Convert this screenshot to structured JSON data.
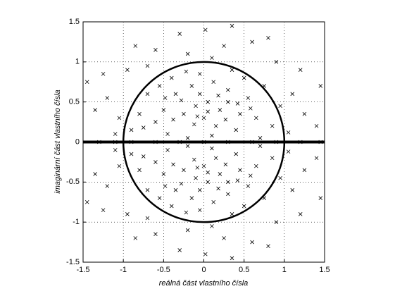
{
  "chart_data": {
    "type": "scatter",
    "x_label": "reálná část vlastního čísla",
    "y_label": "imaginární část vlastního čísla",
    "xlim": [
      -1.5,
      1.5
    ],
    "ylim": [
      -1.5,
      1.5
    ],
    "xticks": [
      -1.5,
      -1,
      -0.5,
      0,
      0.5,
      1,
      1.5
    ],
    "yticks": [
      -1.5,
      -1,
      -0.5,
      0,
      0.5,
      1,
      1.5
    ],
    "grid": true,
    "series": [
      {
        "color": "#000000",
        "x": [
          -0.1,
          0.05,
          -0.25,
          0.2,
          -0.35,
          0.3,
          0.0,
          -0.15,
          0.15,
          -0.05,
          0.45,
          -0.5,
          0.55,
          -0.6,
          0.65,
          -0.4,
          0.35,
          0.1,
          -0.2,
          0.25,
          -0.7,
          0.75,
          -0.8,
          0.85,
          -0.9,
          0.95,
          -1.05,
          1.1,
          -1.2,
          1.25,
          -1.35,
          1.4,
          -1.25,
          1.2,
          -0.95,
          0.9,
          -0.6,
          0.6,
          -0.3,
          0.35,
          -0.85,
          0.8,
          -1.1,
          1.05,
          -0.45,
          0.4,
          -0.2,
          0.1,
          -0.05,
          0.12,
          -0.28,
          0.27,
          -0.12,
          0.42,
          -0.55,
          0.5,
          -0.7,
          0.7,
          -0.75,
          0.02,
          -0.38,
          0.18,
          -0.22,
          0.58,
          -0.48,
          1.45,
          -1.45,
          0.05,
          -0.08,
          0.3,
          -0.1,
          0.05,
          -0.25,
          0.2,
          -0.35,
          0.3,
          0.0,
          -0.15,
          0.15,
          -0.05,
          0.45,
          -0.5,
          0.55,
          -0.6,
          0.65,
          -0.4,
          0.35,
          0.1,
          -0.2,
          0.25,
          -0.7,
          0.75,
          -0.8,
          0.85,
          -0.9,
          0.95,
          -1.05,
          1.1,
          -1.2,
          1.25,
          -1.35,
          1.4,
          -1.25,
          1.2,
          -0.95,
          0.9,
          -0.6,
          0.6,
          -0.3,
          0.35,
          -0.85,
          0.8,
          -1.1,
          1.05,
          -0.45,
          0.4,
          -0.2,
          0.1,
          -0.05,
          0.12,
          -0.28,
          0.27,
          -0.12,
          0.42,
          -0.55,
          0.5,
          -0.7,
          0.7,
          -0.75,
          0.02,
          -0.38,
          0.18,
          -0.22,
          0.58,
          -0.48,
          1.45,
          -1.45,
          0.05,
          -0.08,
          0.3,
          -1.3,
          -1.1,
          -0.9,
          -0.6,
          -0.3,
          0,
          0.3,
          0.6,
          0.9,
          1.2,
          1.45
        ],
        "y": [
          0.45,
          0.5,
          0.35,
          0.4,
          0.6,
          0.65,
          0.3,
          0.7,
          0.2,
          0.85,
          0.35,
          0.4,
          0.55,
          0.25,
          0.3,
          0.8,
          0.9,
          1.05,
          1.1,
          1.2,
          0.6,
          0.7,
          0.35,
          0.2,
          0.15,
          0.45,
          0.3,
          0.6,
          0.55,
          0.35,
          0.4,
          0.2,
          0.85,
          0.9,
          0.9,
          1.0,
          1.15,
          1.25,
          1.35,
          1.45,
          1.2,
          1.3,
          0.1,
          0.12,
          0.1,
          0.15,
          0.05,
          0.08,
          0.6,
          0.75,
          0.52,
          0.28,
          0.22,
          0.48,
          0.7,
          0.8,
          0.95,
          0.05,
          0.18,
          1.4,
          0.28,
          0.58,
          0.88,
          0.42,
          0.55,
          0.7,
          0.75,
          0.38,
          0.32,
          0.5,
          -0.45,
          -0.5,
          -0.35,
          -0.4,
          -0.6,
          -0.65,
          -0.3,
          -0.7,
          -0.2,
          -0.85,
          -0.35,
          -0.4,
          -0.55,
          -0.25,
          -0.3,
          -0.8,
          -0.9,
          -1.05,
          -1.1,
          -1.2,
          -0.6,
          -0.7,
          -0.35,
          -0.2,
          -0.15,
          -0.45,
          -0.3,
          -0.6,
          -0.55,
          -0.35,
          -0.4,
          -0.2,
          -0.85,
          -0.9,
          -0.9,
          -1.0,
          -1.15,
          -1.25,
          -1.35,
          -1.45,
          -1.2,
          -1.3,
          -0.1,
          -0.12,
          -0.1,
          -0.15,
          -0.05,
          -0.08,
          -0.6,
          -0.75,
          -0.52,
          -0.28,
          -0.22,
          -0.48,
          -0.7,
          -0.8,
          -0.95,
          -0.05,
          -0.18,
          -1.4,
          -0.28,
          -0.58,
          -0.88,
          -0.42,
          -0.55,
          -0.7,
          -0.75,
          -0.38,
          -0.32,
          -0.5,
          0,
          0,
          0,
          0,
          0,
          0,
          0,
          0,
          0,
          0,
          0
        ]
      }
    ],
    "circle": {
      "cx": 0,
      "cy": 0,
      "r": 1
    },
    "hline": {
      "y": 0
    }
  }
}
